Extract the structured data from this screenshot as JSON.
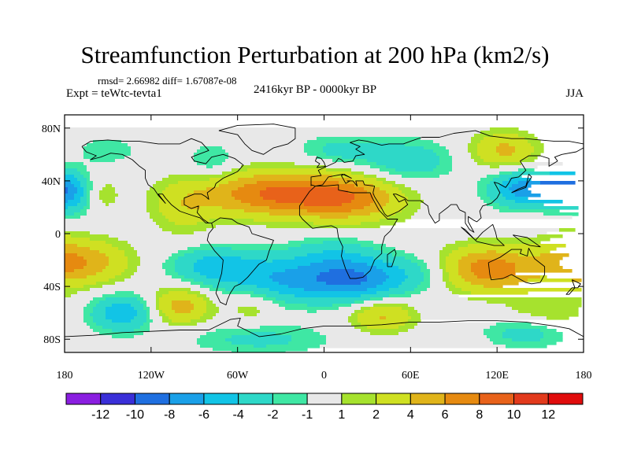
{
  "chart_data": {
    "type": "heatmap",
    "title": "Streamfunction Perturbation at 200 hPa (km2/s)",
    "stats_text": "rmsd= 2.66982  diff= 1.67087e-08",
    "left_label": "Expt = teWtc-tevta1",
    "center_label": "2416kyr BP - 0000kyr BP",
    "right_label": "JJA",
    "projection": "equirectangular",
    "xlim": [
      -180,
      180
    ],
    "ylim": [
      -90,
      90
    ],
    "x_ticks": [
      {
        "value": -180,
        "label": "180"
      },
      {
        "value": -120,
        "label": "120W"
      },
      {
        "value": -60,
        "label": "60W"
      },
      {
        "value": 0,
        "label": "0"
      },
      {
        "value": 60,
        "label": "60E"
      },
      {
        "value": 120,
        "label": "120E"
      },
      {
        "value": 180,
        "label": "180"
      }
    ],
    "y_ticks": [
      {
        "value": 80,
        "label": "80N"
      },
      {
        "value": 40,
        "label": "40N"
      },
      {
        "value": 0,
        "label": "0"
      },
      {
        "value": -40,
        "label": "40S"
      },
      {
        "value": -80,
        "label": "80S"
      }
    ],
    "contour_levels": [
      -12,
      -10,
      -8,
      -6,
      -4,
      -2,
      -1,
      1,
      2,
      4,
      6,
      8,
      10,
      12
    ],
    "colorbar_labels": [
      "-12",
      "-10",
      "-8",
      "-6",
      "-4",
      "-2",
      "-1",
      "1",
      "2",
      "4",
      "6",
      "8",
      "10",
      "12"
    ],
    "level_colors": [
      "#8a1ee0",
      "#3a2fd8",
      "#1f6fe0",
      "#1aa0e8",
      "#12c4e6",
      "#2ed8c8",
      "#3fe7a4",
      "#e8e8e8",
      "#a6e22e",
      "#cfe022",
      "#e0b41a",
      "#e68a10",
      "#e8621a",
      "#e23a1c",
      "#e00c0c"
    ],
    "anomalies": [
      {
        "lon": -30,
        "lat": 30,
        "amp": 8.5,
        "wlon": 40,
        "wlat": 12
      },
      {
        "lon": 20,
        "lat": 25,
        "amp": 4.5,
        "wlon": 25,
        "wlat": 12
      },
      {
        "lon": -98,
        "lat": 18,
        "amp": 2.5,
        "wlon": 15,
        "wlat": 14
      },
      {
        "lon": -157,
        "lat": 30,
        "amp": 2.5,
        "wlon": 10,
        "wlat": 10
      },
      {
        "lon": 160,
        "lat": 34,
        "amp": -9,
        "wlon": 18,
        "wlat": 9
      },
      {
        "lon": 130,
        "lat": 34,
        "amp": -4,
        "wlon": 14,
        "wlat": 10
      },
      {
        "lon": 125,
        "lat": 63,
        "amp": 4.5,
        "wlon": 16,
        "wlat": 10
      },
      {
        "lon": 58,
        "lat": 55,
        "amp": -3.5,
        "wlon": 22,
        "wlat": 11
      },
      {
        "lon": 10,
        "lat": 63,
        "amp": -2.5,
        "wlon": 20,
        "wlat": 8
      },
      {
        "lon": -78,
        "lat": 55,
        "amp": -2.2,
        "wlon": 12,
        "wlat": 10
      },
      {
        "lon": -175,
        "lat": 30,
        "amp": -4.5,
        "wlon": 12,
        "wlat": 12
      },
      {
        "lon": -150,
        "lat": 63,
        "amp": -2,
        "wlon": 14,
        "wlat": 7
      },
      {
        "lon": -165,
        "lat": -22,
        "amp": 5,
        "wlon": 22,
        "wlat": 12
      },
      {
        "lon": -75,
        "lat": -25,
        "amp": -5,
        "wlon": 22,
        "wlat": 10
      },
      {
        "lon": -20,
        "lat": -35,
        "amp": -6,
        "wlon": 30,
        "wlat": 12
      },
      {
        "lon": 25,
        "lat": -35,
        "amp": -6,
        "wlon": 22,
        "wlat": 12
      },
      {
        "lon": 5,
        "lat": -15,
        "amp": -2.5,
        "wlon": 22,
        "wlat": 10
      },
      {
        "lon": 65,
        "lat": -30,
        "amp": -2.5,
        "wlon": 20,
        "wlat": 10
      },
      {
        "lon": 115,
        "lat": -27,
        "amp": 7.5,
        "wlon": 25,
        "wlat": 12
      },
      {
        "lon": 170,
        "lat": -20,
        "amp": 3.5,
        "wlon": 16,
        "wlat": 14
      },
      {
        "lon": -140,
        "lat": -60,
        "amp": -5.5,
        "wlon": 16,
        "wlat": 10
      },
      {
        "lon": -100,
        "lat": -55,
        "amp": 5,
        "wlon": 15,
        "wlat": 10
      },
      {
        "lon": -50,
        "lat": -55,
        "amp": 2,
        "wlon": 12,
        "wlat": 9
      },
      {
        "lon": -45,
        "lat": -80,
        "amp": -2.5,
        "wlon": 35,
        "wlat": 8
      },
      {
        "lon": 40,
        "lat": -62,
        "amp": 4.5,
        "wlon": 16,
        "wlat": 9
      },
      {
        "lon": 140,
        "lat": -75,
        "amp": -3,
        "wlon": 20,
        "wlat": 8
      },
      {
        "lon": 155,
        "lat": -60,
        "amp": 2,
        "wlon": 20,
        "wlat": 9
      }
    ]
  }
}
